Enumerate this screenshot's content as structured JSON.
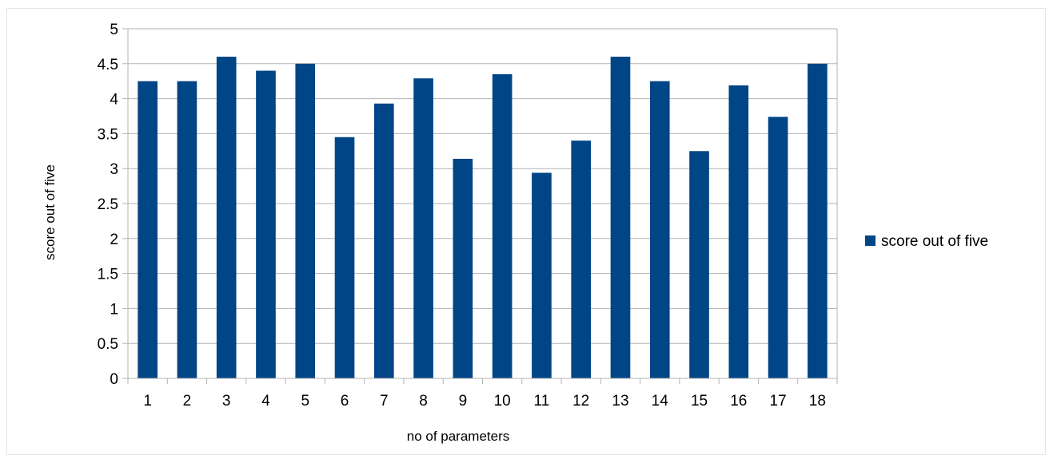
{
  "chart_data": {
    "type": "bar",
    "categories": [
      "1",
      "2",
      "3",
      "4",
      "5",
      "6",
      "7",
      "8",
      "9",
      "10",
      "11",
      "12",
      "13",
      "14",
      "15",
      "16",
      "17",
      "18"
    ],
    "series": [
      {
        "name": "score out of five",
        "values": [
          4.25,
          4.25,
          4.6,
          4.4,
          4.5,
          3.45,
          3.93,
          4.29,
          3.14,
          4.35,
          2.94,
          3.4,
          4.6,
          4.25,
          3.25,
          4.19,
          3.74,
          4.5
        ],
        "color": "#004586"
      }
    ],
    "title": "",
    "xlabel": "no of parameters",
    "ylabel": "score out of five",
    "ylim": [
      0,
      5
    ],
    "yticks": [
      "0",
      "0.5",
      "1",
      "1.5",
      "2",
      "2.5",
      "3",
      "3.5",
      "4",
      "4.5",
      "5"
    ],
    "grid": true,
    "gridColor": "#b3b3b3",
    "legend": "right"
  }
}
